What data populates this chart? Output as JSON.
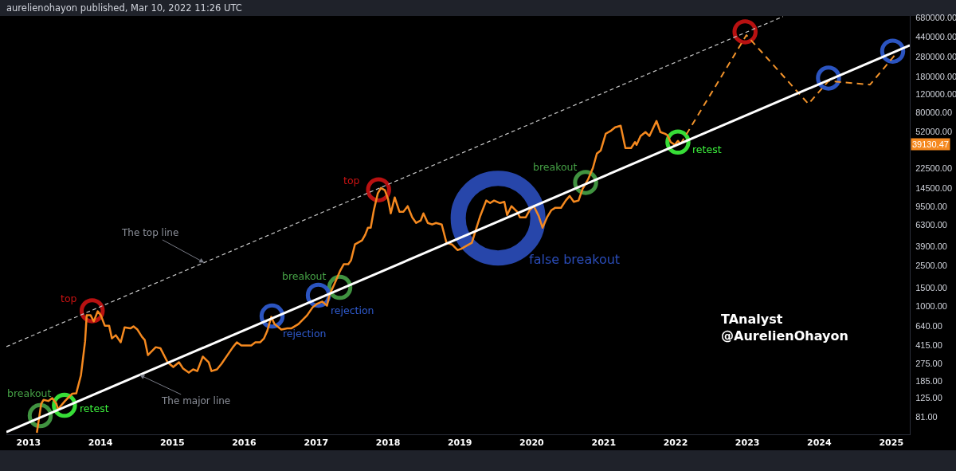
{
  "chart_data": {
    "type": "line",
    "title": "aurelienohayon published, Mar 10, 2022 11:26 UTC",
    "log": true,
    "xlim": [
      "2012-09-10",
      "2025-04-05"
    ],
    "xticks": [
      "2013",
      "2014",
      "2015",
      "2016",
      "2017",
      "2018",
      "2019",
      "2020",
      "2021",
      "2022",
      "2023",
      "2024",
      "2025"
    ],
    "ylim": [
      55,
      710000
    ],
    "yticks": [
      {
        "value": 81,
        "label": "81.00"
      },
      {
        "value": 125,
        "label": "125.00"
      },
      {
        "value": 185,
        "label": "185.00"
      },
      {
        "value": 275,
        "label": "275.00"
      },
      {
        "value": 415,
        "label": "415.00"
      },
      {
        "value": 640,
        "label": "640.00"
      },
      {
        "value": 1000,
        "label": "1000.00"
      },
      {
        "value": 1500,
        "label": "1500.00"
      },
      {
        "value": 2500,
        "label": "2500.00"
      },
      {
        "value": 3900,
        "label": "3900.00"
      },
      {
        "value": 6300,
        "label": "6300.00"
      },
      {
        "value": 9500,
        "label": "9500.00"
      },
      {
        "value": 14500,
        "label": "14500.00"
      },
      {
        "value": 22500,
        "label": "22500.00"
      },
      {
        "value": 52000,
        "label": "52000.00"
      },
      {
        "value": 80000,
        "label": "80000.00"
      },
      {
        "value": 120000,
        "label": "120000.00"
      },
      {
        "value": 180000,
        "label": "180000.00"
      },
      {
        "value": 280000,
        "label": "280000.00"
      },
      {
        "value": 440000,
        "label": "440000.00"
      },
      {
        "value": 680000,
        "label": "680000.00"
      }
    ],
    "series": [
      {
        "color": "#f5891f",
        "line_style": "solid",
        "x": [
          "2013-02-12",
          "2013-03-06",
          "2013-03-18",
          "2013-04-11",
          "2013-05-01",
          "2013-05-22",
          "2013-05-30",
          "2013-07-05",
          "2013-08-11",
          "2013-08-31",
          "2013-09-24",
          "2013-10-15",
          "2013-10-23",
          "2013-11-12",
          "2013-11-28",
          "2013-12-18",
          "2014-01-03",
          "2014-01-23",
          "2014-02-14",
          "2014-02-28",
          "2014-03-20",
          "2014-04-14",
          "2014-05-04",
          "2014-06-02",
          "2014-06-18",
          "2014-07-08",
          "2014-07-31",
          "2014-08-14",
          "2014-08-30",
          "2014-10-09",
          "2014-11-02",
          "2014-12-08",
          "2015-01-06",
          "2015-02-04",
          "2015-02-24",
          "2015-03-26",
          "2015-04-17",
          "2015-05-08",
          "2015-06-05",
          "2015-07-05",
          "2015-07-19",
          "2015-08-16",
          "2015-09-08",
          "2015-10-08",
          "2015-11-05",
          "2015-11-25",
          "2015-12-18",
          "2016-01-17",
          "2016-02-06",
          "2016-02-27",
          "2016-03-22",
          "2016-04-11",
          "2016-04-27",
          "2016-05-18",
          "2016-06-03",
          "2016-07-08",
          "2016-08-07",
          "2016-08-27",
          "2016-10-03",
          "2016-11-16",
          "2016-12-14",
          "2017-01-04",
          "2017-02-01",
          "2017-02-25",
          "2017-03-09",
          "2017-04-03",
          "2017-05-01",
          "2017-05-21",
          "2017-06-13",
          "2017-06-27",
          "2017-07-17",
          "2017-08-22",
          "2017-09-07",
          "2017-09-21",
          "2017-10-05",
          "2017-10-21",
          "2017-11-10",
          "2017-11-26",
          "2017-12-16",
          "2018-01-01",
          "2018-01-15",
          "2018-02-04",
          "2018-02-28",
          "2018-03-20",
          "2018-04-11",
          "2018-05-04",
          "2018-05-24",
          "2018-06-16",
          "2018-06-30",
          "2018-07-22",
          "2018-08-13",
          "2018-09-02",
          "2018-10-01",
          "2018-10-25",
          "2018-11-22",
          "2018-12-20",
          "2019-01-09",
          "2019-02-02",
          "2019-03-03",
          "2019-03-23",
          "2019-04-15",
          "2019-05-15",
          "2019-06-04",
          "2019-06-24",
          "2019-07-24",
          "2019-08-15",
          "2019-08-29",
          "2019-09-20",
          "2019-10-19",
          "2019-11-02",
          "2019-12-02",
          "2019-12-22",
          "2020-01-12",
          "2020-02-05",
          "2020-02-25",
          "2020-03-19",
          "2020-04-10",
          "2020-04-30",
          "2020-05-29",
          "2020-06-22",
          "2020-07-12",
          "2020-08-02",
          "2020-08-26",
          "2020-09-15",
          "2020-10-14",
          "2020-11-07",
          "2020-11-27",
          "2020-12-17",
          "2021-01-11",
          "2021-02-08",
          "2021-02-28",
          "2021-03-28",
          "2021-04-21",
          "2021-05-20",
          "2021-06-09",
          "2021-06-17",
          "2021-07-07",
          "2021-08-01",
          "2021-08-21",
          "2021-09-26",
          "2021-10-16",
          "2021-11-09",
          "2021-11-21",
          "2021-12-07",
          "2021-12-28",
          "2022-01-13",
          "2022-01-26"
        ],
        "values": [
          57,
          110,
          120,
          117,
          125,
          110,
          97,
          117,
          138,
          139,
          210,
          452,
          813,
          813,
          709,
          890,
          813,
          643,
          643,
          482,
          518,
          441,
          620,
          604,
          632,
          588,
          500,
          465,
          330,
          395,
          385,
          281,
          252,
          281,
          245,
          222,
          239,
          230,
          319,
          281,
          230,
          239,
          271,
          330,
          395,
          441,
          410,
          410,
          410,
          441,
          441,
          482,
          567,
          784,
          667,
          588,
          604,
          604,
          667,
          813,
          973,
          1050,
          1110,
          1010,
          1280,
          1640,
          2190,
          2580,
          2580,
          2820,
          4040,
          4420,
          5020,
          5900,
          5900,
          8770,
          12800,
          14500,
          13800,
          11300,
          8160,
          11700,
          8460,
          8460,
          9600,
          7460,
          6570,
          6940,
          8160,
          6570,
          6340,
          6570,
          6340,
          4190,
          4040,
          3560,
          3660,
          3900,
          4190,
          5590,
          7730,
          10900,
          10300,
          10900,
          10300,
          10600,
          7870,
          9600,
          8460,
          7460,
          7460,
          8770,
          9600,
          7730,
          5900,
          7460,
          8770,
          9260,
          9260,
          10900,
          12100,
          10600,
          10900,
          14100,
          17700,
          22800,
          31500,
          33900,
          49400,
          53100,
          57100,
          59200,
          35800,
          35800,
          40900,
          38400,
          46900,
          51300,
          46900,
          66000,
          51300,
          49400,
          47700,
          40900,
          38400,
          42000,
          39130.47
        ]
      },
      {
        "color": "#f0922b",
        "line_style": "dashed",
        "x": [
          "2022-01-26",
          "2022-12-27",
          "2023-11-07",
          "2024-02-17",
          "2024-09-15",
          "2025-01-30"
        ],
        "values": [
          39130.47,
          460000,
          97000,
          163000,
          150000,
          310000
        ]
      },
      {
        "color": "#ffffff",
        "line_style": "solid",
        "x": [
          "2012-09-10",
          "2025-04-05"
        ],
        "values": [
          58,
          365000
        ]
      },
      {
        "color": "#c8c8c8",
        "line_style": "dashed",
        "x": [
          "2012-09-10",
          "2023-07-01"
        ],
        "values": [
          400,
          700000
        ]
      },
      {
        "type": "bubble",
        "name": "breakout",
        "color": "#45a045",
        "x": [
          "2013-03-01",
          "2017-05-01",
          "2020-10-01"
        ],
        "values": [
          84,
          1530,
          16400
        ],
        "sizes": [
          0.07,
          0.07,
          0.07
        ]
      },
      {
        "type": "bubble",
        "name": "retest",
        "color": "#3cf03c",
        "x": [
          "2013-07-02",
          "2022-01-13"
        ],
        "values": [
          106,
          40900
        ],
        "sizes": [
          0.07,
          0.07
        ]
      },
      {
        "type": "bubble",
        "name": "top",
        "color": "#c81212",
        "x": [
          "2013-11-20",
          "2017-11-14"
        ],
        "values": [
          900,
          13900
        ],
        "sizes": [
          0.07,
          0.07
        ]
      },
      {
        "type": "bubble",
        "color": "#c81212",
        "x": [
          "2022-12-20"
        ],
        "values": [
          496000
        ],
        "sizes": [
          0.07
        ]
      },
      {
        "type": "bubble",
        "name": "rejection",
        "color": "#2f5bd0",
        "x": [
          "2016-05-22",
          "2017-01-12"
        ],
        "values": [
          800,
          1280
        ],
        "sizes": [
          0.07,
          0.07
        ]
      },
      {
        "type": "bubble",
        "color": "#2f5bd0",
        "x": [
          "2024-02-17",
          "2025-01-08"
        ],
        "values": [
          174000,
          320000
        ],
        "sizes": [
          0.07,
          0.07
        ]
      },
      {
        "type": "bubble",
        "name": "false breakout",
        "color": "#2a4cb8",
        "x": [
          "2019-07-14"
        ],
        "values": [
          7320
        ],
        "sizes": [
          1
        ]
      }
    ],
    "annotations": [
      {
        "text": "The top line",
        "x": "2015-06-12",
        "y": 2680
      },
      {
        "text": "The major line",
        "x": "2014-07-19",
        "y": 211
      },
      "39130.47",
      "TAnalyst\n@AurelienOhayon"
    ]
  }
}
